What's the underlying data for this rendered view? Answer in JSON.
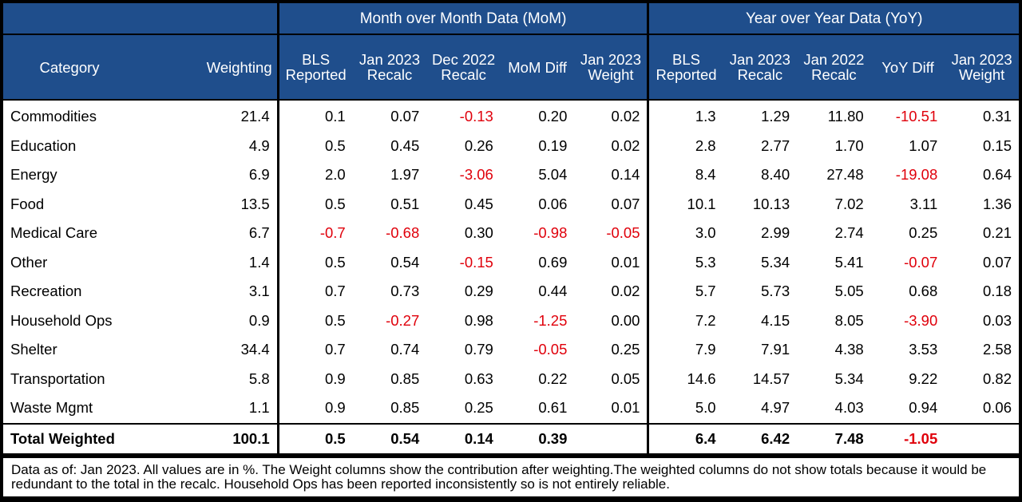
{
  "groups": {
    "mom": "Month over Month Data (MoM)",
    "yoy": "Year over Year Data (YoY)"
  },
  "headers": {
    "category": "Category",
    "weighting": "Weighting",
    "mom": [
      "BLS Reported",
      "Jan 2023 Recalc",
      "Dec 2022 Recalc",
      "MoM Diff",
      "Jan 2023 Weight"
    ],
    "yoy": [
      "BLS Reported",
      "Jan 2023 Recalc",
      "Jan 2022 Recalc",
      "YoY Diff",
      "Jan 2023 Weight"
    ]
  },
  "rows": [
    {
      "category": "Commodities",
      "weighting": "21.4",
      "mom": [
        "0.1",
        "0.07",
        "-0.13",
        "0.20",
        "0.02"
      ],
      "yoy": [
        "1.3",
        "1.29",
        "11.80",
        "-10.51",
        "0.31"
      ]
    },
    {
      "category": "Education",
      "weighting": "4.9",
      "mom": [
        "0.5",
        "0.45",
        "0.26",
        "0.19",
        "0.02"
      ],
      "yoy": [
        "2.8",
        "2.77",
        "1.70",
        "1.07",
        "0.15"
      ]
    },
    {
      "category": "Energy",
      "weighting": "6.9",
      "mom": [
        "2.0",
        "1.97",
        "-3.06",
        "5.04",
        "0.14"
      ],
      "yoy": [
        "8.4",
        "8.40",
        "27.48",
        "-19.08",
        "0.64"
      ]
    },
    {
      "category": "Food",
      "weighting": "13.5",
      "mom": [
        "0.5",
        "0.51",
        "0.45",
        "0.06",
        "0.07"
      ],
      "yoy": [
        "10.1",
        "10.13",
        "7.02",
        "3.11",
        "1.36"
      ]
    },
    {
      "category": "Medical Care",
      "weighting": "6.7",
      "mom": [
        "-0.7",
        "-0.68",
        "0.30",
        "-0.98",
        "-0.05"
      ],
      "yoy": [
        "3.0",
        "2.99",
        "2.74",
        "0.25",
        "0.21"
      ]
    },
    {
      "category": "Other",
      "weighting": "1.4",
      "mom": [
        "0.5",
        "0.54",
        "-0.15",
        "0.69",
        "0.01"
      ],
      "yoy": [
        "5.3",
        "5.34",
        "5.41",
        "-0.07",
        "0.07"
      ]
    },
    {
      "category": "Recreation",
      "weighting": "3.1",
      "mom": [
        "0.7",
        "0.73",
        "0.29",
        "0.44",
        "0.02"
      ],
      "yoy": [
        "5.7",
        "5.73",
        "5.05",
        "0.68",
        "0.18"
      ]
    },
    {
      "category": "Household Ops",
      "weighting": "0.9",
      "mom": [
        "0.5",
        "-0.27",
        "0.98",
        "-1.25",
        "0.00"
      ],
      "yoy": [
        "7.2",
        "4.15",
        "8.05",
        "-3.90",
        "0.03"
      ]
    },
    {
      "category": "Shelter",
      "weighting": "34.4",
      "mom": [
        "0.7",
        "0.74",
        "0.79",
        "-0.05",
        "0.25"
      ],
      "yoy": [
        "7.9",
        "7.91",
        "4.38",
        "3.53",
        "2.58"
      ]
    },
    {
      "category": "Transportation",
      "weighting": "5.8",
      "mom": [
        "0.9",
        "0.85",
        "0.63",
        "0.22",
        "0.05"
      ],
      "yoy": [
        "14.6",
        "14.57",
        "5.34",
        "9.22",
        "0.82"
      ]
    },
    {
      "category": "Waste Mgmt",
      "weighting": "1.1",
      "mom": [
        "0.9",
        "0.85",
        "0.25",
        "0.61",
        "0.01"
      ],
      "yoy": [
        "5.0",
        "4.97",
        "4.03",
        "0.94",
        "0.06"
      ]
    }
  ],
  "total": {
    "category": "Total Weighted",
    "weighting": "100.1",
    "mom": [
      "0.5",
      "0.54",
      "0.14",
      "0.39",
      ""
    ],
    "yoy": [
      "6.4",
      "6.42",
      "7.48",
      "-1.05",
      ""
    ]
  },
  "note": "Data as of: Jan 2023. All values are in %. The Weight columns show the contribution after weighting.The weighted columns do not show totals because it would be redundant to the total in the recalc. Household Ops has been reported inconsistently so is not entirely reliable.",
  "colors": {
    "header_bg": "#1f4e8c",
    "negative": "#e0000b",
    "border": "#000000"
  }
}
